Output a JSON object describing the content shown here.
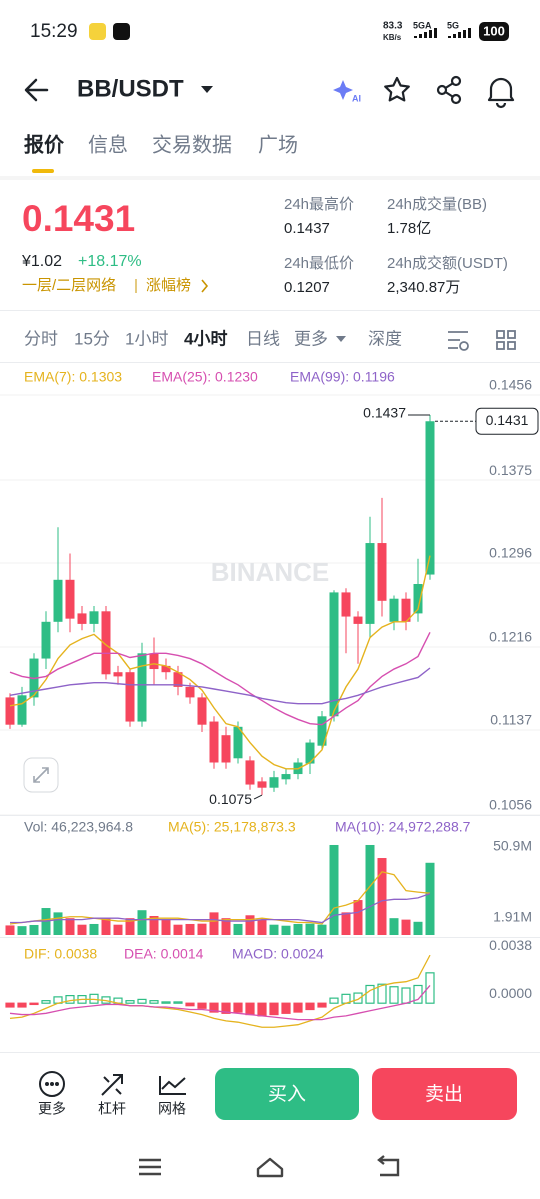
{
  "status_bar": {
    "time": "15:29",
    "net_speed": "83.3",
    "net_unit": "KB/s",
    "sim1": "5GA",
    "sim2": "5G",
    "battery": "100"
  },
  "header": {
    "pair": "BB/USDT",
    "ai_badge": "AI"
  },
  "tabs": [
    "报价",
    "信息",
    "交易数据",
    "广场"
  ],
  "ticker": {
    "last_price": "0.1431",
    "cny_price": "¥1.02",
    "change": "+18.17%",
    "tag": "一层/二层网络",
    "rank_link": "涨幅榜",
    "stats": [
      {
        "label": "24h最高价",
        "value": "0.1437"
      },
      {
        "label": "24h成交量(BB)",
        "value": "1.78亿"
      },
      {
        "label": "24h最低价",
        "value": "0.1207"
      },
      {
        "label": "24h成交额(USDT)",
        "value": "2,340.87万"
      }
    ]
  },
  "intervals": [
    "分时",
    "15分",
    "1小时",
    "4小时",
    "日线",
    "更多",
    "深度"
  ],
  "chart_data": [
    {
      "type": "candlestick",
      "watermark": "BINANCE",
      "up_color": "#2ebd85",
      "down_color": "#f6465d",
      "open": [
        0.1168,
        0.1142,
        0.1168,
        0.1205,
        0.124,
        0.128,
        0.1248,
        0.1238,
        0.125,
        0.1192,
        0.1192,
        0.1145,
        0.121,
        0.1198,
        0.1192,
        0.1178,
        0.1168,
        0.1145,
        0.1132,
        0.111,
        0.1108,
        0.1088,
        0.1082,
        0.109,
        0.1095,
        0.1105,
        0.1122,
        0.115,
        0.1268,
        0.1245,
        0.1238,
        0.1315,
        0.124,
        0.1262,
        0.1248,
        0.1285
      ],
      "high": [
        0.1172,
        0.1178,
        0.121,
        0.125,
        0.133,
        0.1305,
        0.1255,
        0.1255,
        0.1255,
        0.1198,
        0.1195,
        0.122,
        0.1225,
        0.1205,
        0.1198,
        0.1182,
        0.1172,
        0.115,
        0.114,
        0.1145,
        0.1112,
        0.1092,
        0.1098,
        0.11,
        0.111,
        0.1128,
        0.1155,
        0.127,
        0.1272,
        0.125,
        0.134,
        0.1358,
        0.1265,
        0.1268,
        0.13,
        0.1437
      ],
      "low": [
        0.1138,
        0.114,
        0.116,
        0.1195,
        0.123,
        0.123,
        0.1232,
        0.123,
        0.1185,
        0.118,
        0.114,
        0.114,
        0.118,
        0.1185,
        0.117,
        0.1162,
        0.1135,
        0.11,
        0.11,
        0.1105,
        0.108,
        0.1075,
        0.1078,
        0.1085,
        0.109,
        0.1095,
        0.1118,
        0.1145,
        0.121,
        0.12,
        0.1225,
        0.1245,
        0.1232,
        0.1232,
        0.124,
        0.128
      ],
      "close": [
        0.1142,
        0.117,
        0.1205,
        0.124,
        0.128,
        0.1243,
        0.1238,
        0.125,
        0.119,
        0.1188,
        0.1145,
        0.121,
        0.1195,
        0.1192,
        0.1178,
        0.1168,
        0.1142,
        0.1106,
        0.1106,
        0.114,
        0.1085,
        0.1082,
        0.1092,
        0.1095,
        0.1106,
        0.1125,
        0.115,
        0.1268,
        0.1245,
        0.1238,
        0.1315,
        0.126,
        0.1262,
        0.124,
        0.1276,
        0.1431
      ],
      "series": [
        {
          "name": "EMA(7): 0.1303",
          "color": "#e5b31e",
          "values": [
            0.116,
            0.1162,
            0.117,
            0.1185,
            0.1205,
            0.1218,
            0.1224,
            0.1228,
            0.1218,
            0.121,
            0.1195,
            0.1198,
            0.12,
            0.1198,
            0.1192,
            0.1185,
            0.1175,
            0.1158,
            0.1143,
            0.114,
            0.1125,
            0.1112,
            0.1104,
            0.11,
            0.11,
            0.1106,
            0.1118,
            0.1155,
            0.1178,
            0.1195,
            0.1225,
            0.1235,
            0.124,
            0.124,
            0.1252,
            0.1303
          ]
        },
        {
          "name": "EMA(25): 0.1230",
          "color": "#d64fb0",
          "values": [
            0.1192,
            0.1188,
            0.1186,
            0.1188,
            0.1195,
            0.12,
            0.1205,
            0.121,
            0.121,
            0.121,
            0.1206,
            0.1208,
            0.121,
            0.121,
            0.1208,
            0.1205,
            0.12,
            0.1193,
            0.1186,
            0.118,
            0.1172,
            0.1165,
            0.1158,
            0.1152,
            0.1147,
            0.1143,
            0.1142,
            0.115,
            0.1158,
            0.1165,
            0.1178,
            0.1188,
            0.1195,
            0.12,
            0.1207,
            0.123
          ]
        },
        {
          "name": "EMA(99): 0.1196",
          "color": "#8e63c8",
          "values": [
            0.117,
            0.1172,
            0.1174,
            0.1176,
            0.1178,
            0.118,
            0.1181,
            0.1182,
            0.1182,
            0.1181,
            0.118,
            0.118,
            0.118,
            0.118,
            0.118,
            0.1179,
            0.1178,
            0.1176,
            0.1174,
            0.1172,
            0.117,
            0.1167,
            0.1165,
            0.1163,
            0.1162,
            0.1162,
            0.1162,
            0.1165,
            0.1167,
            0.117,
            0.1174,
            0.1178,
            0.1181,
            0.1184,
            0.1187,
            0.1196
          ]
        }
      ],
      "ylim": [
        0.1056,
        0.1456
      ],
      "yticks": [
        0.1456,
        0.1375,
        0.1296,
        0.1216,
        0.1137,
        0.1056
      ],
      "grid": true,
      "high_label": 0.1437,
      "low_label": 0.1075,
      "last_price": 0.1431
    },
    {
      "type": "volume",
      "title": "Vol: 46,223,964.8",
      "values": [
        3000000,
        2500000,
        3300000,
        15000000,
        12000000,
        8000000,
        3500000,
        4000000,
        8000000,
        3500000,
        8000000,
        13500000,
        9500000,
        7000000,
        3500000,
        4000000,
        4200000,
        12000000,
        8000000,
        4000000,
        10000000,
        7000000,
        3500000,
        2800000,
        4000000,
        4200000,
        3500000,
        58500000,
        12000000,
        20500000,
        58500000,
        49500000,
        8000000,
        7000000,
        5500000,
        46223964.8
      ],
      "series": [
        {
          "name": "MA(5): 25,178,873.3",
          "color": "#e5b31e",
          "values": [
            4000000,
            5000000,
            6000000,
            7000000,
            8000000,
            9000000,
            9000000,
            8000000,
            7000000,
            6000000,
            6000000,
            7000000,
            8000000,
            8000000,
            8000000,
            7000000,
            6000000,
            6000000,
            7000000,
            7000000,
            7000000,
            8000000,
            7000000,
            6000000,
            5000000,
            5000000,
            4000000,
            15000000,
            17000000,
            20000000,
            30000000,
            40000000,
            38000000,
            27000000,
            26000000,
            25178873.3
          ]
        },
        {
          "name": "MA(10): 24,972,288.7",
          "color": "#8e63c8",
          "values": [
            5000000,
            5000000,
            6000000,
            6000000,
            7000000,
            7000000,
            7000000,
            8000000,
            8000000,
            8000000,
            7000000,
            7000000,
            7000000,
            7000000,
            7000000,
            7000000,
            7000000,
            7000000,
            6000000,
            6000000,
            6000000,
            7000000,
            7000000,
            7000000,
            7000000,
            6000000,
            5000000,
            10000000,
            11000000,
            12000000,
            16000000,
            20000000,
            21000000,
            21000000,
            22000000,
            24972288.7
          ]
        }
      ],
      "ylim": [
        1910000,
        50900000
      ],
      "yticks": [
        {
          "value": 50900000,
          "label": "50.9M"
        },
        {
          "value": 1910000,
          "label": "1.91M"
        }
      ]
    },
    {
      "type": "macd",
      "series": [
        {
          "name": "DIF: 0.0038",
          "color": "#e5b31e",
          "values": [
            -0.0012,
            -0.0011,
            -0.0008,
            -0.0004,
            0.0,
            0.0002,
            0.0003,
            0.0003,
            0.0002,
            0.0,
            -0.0002,
            -0.0002,
            -0.0003,
            -0.0004,
            -0.0005,
            -0.0007,
            -0.0009,
            -0.0012,
            -0.0014,
            -0.0015,
            -0.0017,
            -0.0019,
            -0.0019,
            -0.0018,
            -0.0017,
            -0.0014,
            -0.0011,
            -0.0004,
            0.0,
            0.0003,
            0.001,
            0.0014,
            0.0016,
            0.0017,
            0.002,
            0.0038
          ]
        },
        {
          "name": "DEA: 0.0014",
          "color": "#d64fb0",
          "values": [
            -0.0008,
            -0.0009,
            -0.0009,
            -0.0008,
            -0.0006,
            -0.0004,
            -0.0003,
            -0.0002,
            -0.0001,
            -0.0001,
            -0.0002,
            -0.0002,
            -0.0003,
            -0.0003,
            -0.0004,
            -0.0005,
            -0.0005,
            -0.0006,
            -0.0007,
            -0.0008,
            -0.0009,
            -0.001,
            -0.0011,
            -0.0012,
            -0.0013,
            -0.0013,
            -0.0013,
            -0.0011,
            -0.001,
            -0.0008,
            -0.0006,
            -0.0004,
            -0.0002,
            0.0,
            0.0003,
            0.0014
          ]
        },
        {
          "name": "MACD: 0.0024",
          "color": "#8e63c8",
          "values": [
            -0.0003,
            -0.0003,
            -0.0001,
            0.0002,
            0.0005,
            0.0006,
            0.0006,
            0.0007,
            0.0005,
            0.0004,
            0.0002,
            0.0003,
            0.0002,
            0.0001,
            0.0001,
            -0.0002,
            -0.0004,
            -0.0007,
            -0.0008,
            -0.0007,
            -0.0009,
            -0.001,
            -0.0009,
            -0.0008,
            -0.0007,
            -0.0005,
            -0.0003,
            0.0004,
            0.0007,
            0.0008,
            0.0014,
            0.0015,
            0.0013,
            0.0012,
            0.0014,
            0.0024
          ]
        }
      ],
      "ylim": [
        -0.0037,
        0.0046
      ],
      "yticks": [
        0.0038,
        {
          "value": 0,
          "label": "0.0000"
        }
      ]
    }
  ],
  "bottom_bar": {
    "tools": [
      "更多",
      "杠杆",
      "网格"
    ],
    "buy": "买入",
    "sell": "卖出"
  }
}
